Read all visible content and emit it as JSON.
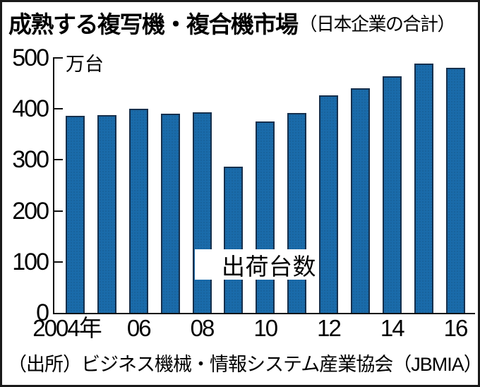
{
  "header": {
    "title": "成熟する複写機・複合機市場",
    "subtitle": "（日本企業の合計）"
  },
  "chart_data": {
    "type": "bar",
    "title": "成熟する複写機・複合機市場（日本企業の合計）",
    "unit_label": "万台",
    "series_label": "出荷台数",
    "categories": [
      "2004",
      "2005",
      "2006",
      "2007",
      "2008",
      "2009",
      "2010",
      "2011",
      "2012",
      "2013",
      "2014",
      "2015",
      "2016"
    ],
    "values": [
      387,
      388,
      400,
      390,
      393,
      287,
      376,
      392,
      427,
      441,
      464,
      489,
      480
    ],
    "ylim": [
      0,
      500
    ],
    "yticks": [
      0,
      100,
      200,
      300,
      400,
      500
    ],
    "grid": "off",
    "legend": "none",
    "colors": {
      "bar_fill": "#1a6baa",
      "bar_border": "#16304d",
      "axis": "#111111",
      "text": "#000000"
    }
  },
  "x_axis": {
    "labels": [
      {
        "text": "2004",
        "suffix": "年",
        "index": 0
      },
      {
        "text": "06",
        "index": 2
      },
      {
        "text": "08",
        "index": 4
      },
      {
        "text": "10",
        "index": 6
      },
      {
        "text": "12",
        "index": 8
      },
      {
        "text": "14",
        "index": 10
      },
      {
        "text": "16",
        "index": 12
      }
    ]
  },
  "source": "（出所）ビジネス機械・情報システム産業協会（JBMIA）"
}
